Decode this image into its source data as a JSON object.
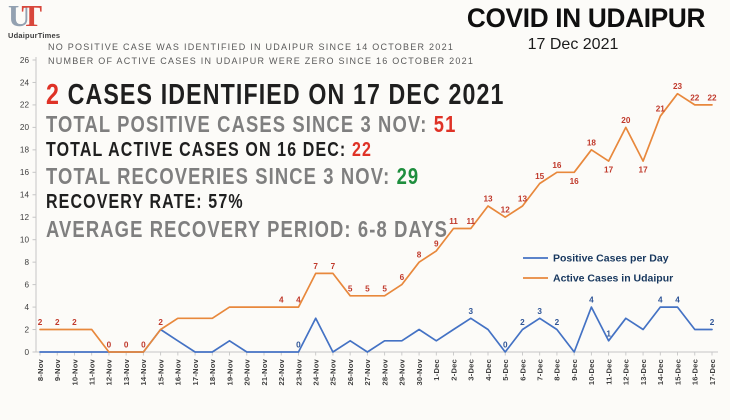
{
  "colors": {
    "red": "#DF3226",
    "green": "#1E8E3E",
    "gray_text": "#7F7F7F",
    "black_text": "#1F1F1F",
    "note_text": "#5A5A5A",
    "background": "#FCFBF8",
    "axis": "#C6C6C6",
    "tick_label": "#3F3F3F",
    "legend_text": "#17375E",
    "logo_u": "#93A1B1",
    "logo_t": "#D8473C"
  },
  "logo": {
    "letter_u": "U",
    "letter_t": "T",
    "subtitle": "UdaipurTimes"
  },
  "header": {
    "title": "COVID IN UDAIPUR",
    "date": "17 Dec 2021"
  },
  "notes": {
    "line1": "NO POSITIVE CASE WAS IDENTIFIED IN UDAIPUR SINCE 14 OCTOBER 2021",
    "line2": "NUMBER OF ACTIVE CASES IN UDAIPUR WERE ZERO SINCE 16 OCTOBER 2021"
  },
  "stats": {
    "headline": {
      "value": "2",
      "text": " CASES IDENTIFIED ON 17 DEC 2021"
    },
    "total_positive": {
      "text": "TOTAL POSITIVE CASES SINCE 3 NOV: ",
      "value": "51"
    },
    "total_active": {
      "text": "TOTAL ACTIVE CASES ON 16 DEC: ",
      "value": "22"
    },
    "total_recoveries": {
      "text": "TOTAL RECOVERIES SINCE 3 NOV: ",
      "value": "29"
    },
    "recovery_rate": "RECOVERY RATE: 57%",
    "recovery_period": "AVERAGE RECOVERY PERIOD: 6-8 DAYS"
  },
  "chart_data": {
    "type": "line",
    "x": [
      "8-Nov",
      "9-Nov",
      "10-Nov",
      "11-Nov",
      "12-Nov",
      "13-Nov",
      "14-Nov",
      "15-Nov",
      "16-Nov",
      "17-Nov",
      "18-Nov",
      "19-Nov",
      "20-Nov",
      "21-Nov",
      "22-Nov",
      "23-Nov",
      "24-Nov",
      "25-Nov",
      "26-Nov",
      "27-Nov",
      "28-Nov",
      "29-Nov",
      "30-Nov",
      "1-Dec",
      "2-Dec",
      "3-Dec",
      "4-Dec",
      "5-Dec",
      "6-Dec",
      "7-Dec",
      "8-Dec",
      "9-Dec",
      "10-Dec",
      "11-Dec",
      "12-Dec",
      "13-Dec",
      "14-Dec",
      "15-Dec",
      "16-Dec",
      "17-Dec"
    ],
    "ylim": [
      0,
      26
    ],
    "ytick_step": 2,
    "grid": false,
    "legend_position": "inside-right",
    "series": [
      {
        "name": "Positive Cases per Day",
        "color": "#4472C4",
        "label_color": "#2F5597",
        "values": [
          0,
          0,
          0,
          0,
          0,
          0,
          0,
          2,
          1,
          0,
          0,
          1,
          0,
          0,
          0,
          0,
          3,
          0,
          1,
          0,
          1,
          1,
          2,
          1,
          2,
          3,
          2,
          0,
          2,
          3,
          2,
          0,
          4,
          1,
          3,
          2,
          4,
          4,
          2,
          2
        ],
        "point_labels": [
          "",
          "",
          "",
          "",
          "",
          "",
          "",
          "",
          "",
          "",
          "",
          "",
          "",
          "",
          "",
          "0",
          "",
          "",
          "",
          "",
          "",
          "",
          "",
          "",
          "",
          "3",
          "",
          "0",
          "2",
          "3",
          "2",
          "",
          "4",
          "1",
          "",
          "",
          "4",
          "4",
          "",
          "2"
        ],
        "labels_below_indices": []
      },
      {
        "name": "Active Cases in Udaipur",
        "color": "#E8883C",
        "label_color": "#C0392B",
        "values": [
          2,
          2,
          2,
          2,
          0,
          0,
          0,
          2,
          3,
          3,
          3,
          4,
          4,
          4,
          4,
          4,
          7,
          7,
          5,
          5,
          5,
          6,
          8,
          9,
          11,
          11,
          13,
          12,
          13,
          15,
          16,
          16,
          18,
          17,
          20,
          17,
          21,
          23,
          22,
          22
        ],
        "point_labels": [
          "2",
          "2",
          "2",
          "",
          "0",
          "0",
          "0",
          "2",
          "",
          "",
          "",
          "",
          "",
          "",
          "4",
          "4",
          "7",
          "7",
          "5",
          "5",
          "5",
          "6",
          "8",
          "9",
          "11",
          "11",
          "13",
          "12",
          "13",
          "15",
          "16",
          "16",
          "18",
          "17",
          "20",
          "17",
          "21",
          "23",
          "22",
          "22"
        ],
        "labels_below_indices": [
          31,
          33,
          35
        ]
      }
    ]
  }
}
